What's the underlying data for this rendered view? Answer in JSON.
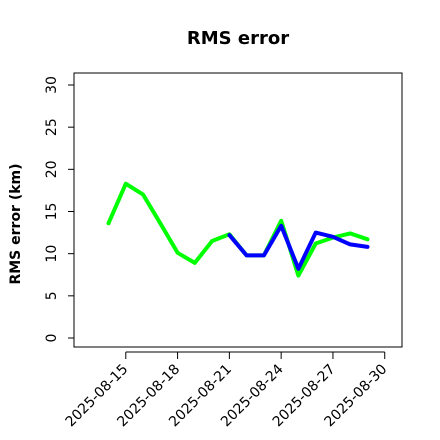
{
  "chart_data": {
    "type": "line",
    "title": "RMS error",
    "xlabel": "",
    "ylabel": "RMS error (km)",
    "ylim": [
      0,
      30
    ],
    "xlim": [
      "2025-08-12",
      "2025-08-31"
    ],
    "y_ticks": [
      0,
      5,
      10,
      15,
      20,
      25,
      30
    ],
    "y_tick_labels": [
      "0",
      "5",
      "10",
      "15",
      "20",
      "25",
      "30"
    ],
    "x_ticks": [
      "2025-08-15",
      "2025-08-18",
      "2025-08-21",
      "2025-08-24",
      "2025-08-27",
      "2025-08-30"
    ],
    "x_tick_labels": [
      "2025-08-15",
      "2025-08-18",
      "2025-08-21",
      "2025-08-24",
      "2025-08-27",
      "2025-08-30"
    ],
    "highlighted_tick": "2025-08-21",
    "highlight_color": "#2e8b2e",
    "grid": false,
    "series": [
      {
        "color": "#00ff00",
        "x": [
          "2025-08-14",
          "2025-08-15",
          "2025-08-16",
          "2025-08-17",
          "2025-08-18",
          "2025-08-19",
          "2025-08-20",
          "2025-08-21",
          "2025-08-22",
          "2025-08-23",
          "2025-08-24",
          "2025-08-25",
          "2025-08-26",
          "2025-08-27",
          "2025-08-28",
          "2025-08-29"
        ],
        "values": [
          13.6,
          18.3,
          17.0,
          13.6,
          10.1,
          8.9,
          11.5,
          12.3,
          9.8,
          9.8,
          13.9,
          7.4,
          11.2,
          11.9,
          12.4,
          11.7
        ]
      },
      {
        "color": "#0000ff",
        "x": [
          "2025-08-21",
          "2025-08-22",
          "2025-08-23",
          "2025-08-24",
          "2025-08-25",
          "2025-08-26",
          "2025-08-27",
          "2025-08-28",
          "2025-08-29"
        ],
        "values": [
          12.2,
          9.8,
          9.8,
          13.3,
          8.2,
          12.5,
          12.0,
          11.1,
          10.8
        ]
      }
    ]
  }
}
